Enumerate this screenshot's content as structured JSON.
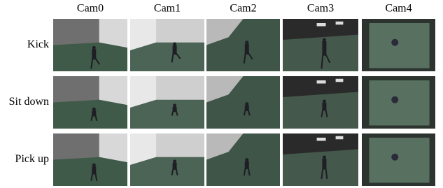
{
  "columns": [
    "Cam0",
    "Cam1",
    "Cam2",
    "Cam3",
    "Cam4"
  ],
  "rows": [
    "Kick",
    "Sit down",
    "Pick up"
  ]
}
